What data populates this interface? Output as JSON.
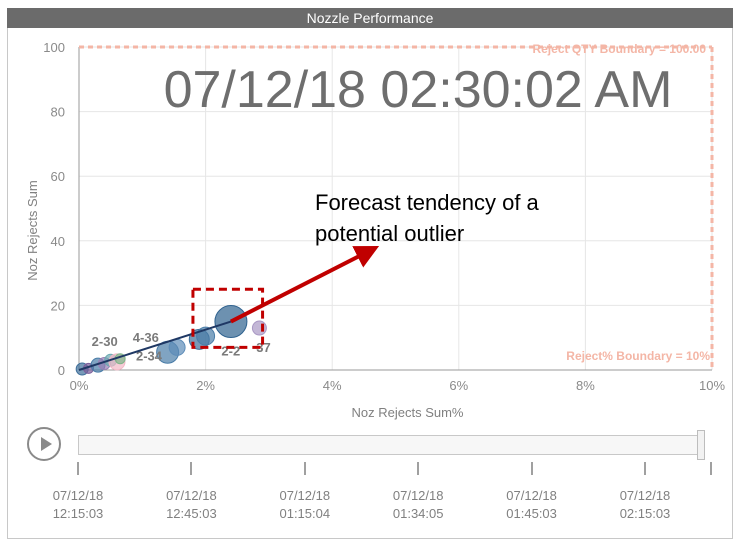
{
  "window": {
    "title": "Nozzle Performance"
  },
  "overlay": {
    "timestamp": "07/12/18 02:30:02 AM",
    "annotation_line1": "Forecast tendency of a",
    "annotation_line2": "potential outlier"
  },
  "chart_data": {
    "type": "scatter",
    "xlabel": "Noz Rejects Sum%",
    "ylabel": "Noz Rejects Sum",
    "xlim": [
      0,
      10
    ],
    "ylim": [
      0,
      100
    ],
    "x_ticks": [
      0,
      2,
      4,
      6,
      8,
      10
    ],
    "x_tick_labels": [
      "0%",
      "2%",
      "4%",
      "6%",
      "8%",
      "10%"
    ],
    "y_ticks": [
      0,
      20,
      40,
      60,
      80,
      100
    ],
    "y_tick_labels": [
      "0",
      "20",
      "40",
      "60",
      "80",
      "100"
    ],
    "grid": true,
    "boundaries": [
      {
        "label": "Reject QTY Boundary = 100.00",
        "axis": "y",
        "value": 100
      },
      {
        "label": "Reject% Boundary = 10%",
        "axis": "x",
        "value": 10
      }
    ],
    "points": [
      {
        "x": 0.05,
        "y": 0.3,
        "size": 6,
        "color": "#3f6f9a"
      },
      {
        "x": 0.15,
        "y": 0.5,
        "size": 5,
        "color": "#7b5e9a"
      },
      {
        "x": 0.3,
        "y": 1.5,
        "size": 7,
        "color": "#4a7da8"
      },
      {
        "x": 0.4,
        "y": 2.0,
        "size": 6,
        "color": "#9a7fb5"
      },
      {
        "x": 0.5,
        "y": 3.0,
        "size": 6,
        "color": "#6aa8b0"
      },
      {
        "x": 0.6,
        "y": 2.5,
        "size": 8,
        "color": "#f2b8c6"
      },
      {
        "x": 0.65,
        "y": 3.5,
        "size": 5,
        "color": "#7fb58a"
      },
      {
        "x": 1.4,
        "y": 5.5,
        "size": 11,
        "color": "#4a7da8"
      },
      {
        "x": 1.55,
        "y": 7.0,
        "size": 8,
        "color": "#5d8cb8"
      },
      {
        "x": 1.9,
        "y": 9.5,
        "size": 10,
        "color": "#3f6f9a"
      },
      {
        "x": 2.0,
        "y": 10.5,
        "size": 9,
        "color": "#4a7da8"
      },
      {
        "x": 2.4,
        "y": 15.0,
        "size": 16,
        "color": "#2f628f"
      },
      {
        "x": 2.85,
        "y": 13.0,
        "size": 7,
        "color": "#a998c4"
      }
    ],
    "point_labels": [
      {
        "text": "2-30",
        "x": 0.2,
        "y": 7.5
      },
      {
        "text": "4-36",
        "x": 0.85,
        "y": 8.7
      },
      {
        "text": "2-34",
        "x": 0.9,
        "y": 3.0
      },
      {
        "text": "2-2",
        "x": 2.25,
        "y": 4.5
      },
      {
        "text": "37",
        "x": 2.8,
        "y": 5.5
      }
    ],
    "trend_line": {
      "from": [
        0.0,
        0.0
      ],
      "to": [
        2.4,
        15.0
      ]
    },
    "highlight_box": {
      "x0": 1.8,
      "x1": 2.9,
      "y0": 7,
      "y1": 25
    },
    "forecast_arrow": {
      "from": [
        2.4,
        15.0
      ],
      "to": [
        4.6,
        37.0
      ]
    }
  },
  "timeline": {
    "labels": [
      {
        "date": "07/12/18",
        "time": "12:15:03"
      },
      {
        "date": "07/12/18",
        "time": "12:45:03"
      },
      {
        "date": "07/12/18",
        "time": "01:15:04"
      },
      {
        "date": "07/12/18",
        "time": "01:34:05"
      },
      {
        "date": "07/12/18",
        "time": "01:45:03"
      },
      {
        "date": "07/12/18",
        "time": "02:15:03"
      }
    ],
    "progress": 1.0
  }
}
